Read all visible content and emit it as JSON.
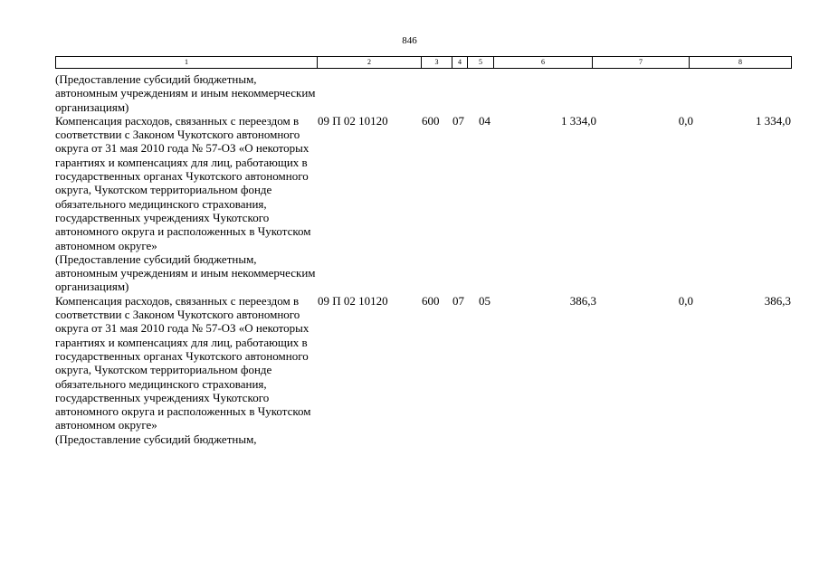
{
  "page": {
    "number": "846"
  },
  "header_columns": [
    "1",
    "2",
    "3",
    "4",
    "5",
    "6",
    "7",
    "8"
  ],
  "leading_note": "(Предоставление субсидий бюджетным, автономным учреждениям и иным некоммерческим организациям)",
  "rows": [
    {
      "description": "Компенсация расходов, связанных с переездом в соответствии с Законом Чукотского автономного округа от 31 мая 2010 года № 57-ОЗ «О некоторых гарантиях и компенсациях для лиц, работающих в государственных органах Чукотского автономного округа, Чукотском территориальном фонде обязательного медицинского страхования, государственных учреждениях Чукотского автономного округа и расположенных в Чукотском автономном округе»",
      "note": "(Предоставление субсидий бюджетным, автономным учреждениям и иным некоммерческим организациям)",
      "code": "09 П 02 10120",
      "vr": "600",
      "rz": "07",
      "pr": "04",
      "col6": "1 334,0",
      "col7": "0,0",
      "col8": "1 334,0"
    },
    {
      "description": "Компенсация расходов, связанных с переездом в соответствии с Законом Чукотского автономного округа от 31 мая 2010 года № 57-ОЗ «О некоторых гарантиях и компенсациях для лиц, работающих в государственных органах Чукотского автономного округа, Чукотском территориальном фонде обязательного медицинского страхования, государственных учреждениях Чукотского автономного округа и расположенных в Чукотском автономном округе»",
      "note": "(Предоставление субсидий бюджетным,",
      "code": "09 П 02 10120",
      "vr": "600",
      "rz": "07",
      "pr": "05",
      "col6": "386,3",
      "col7": "0,0",
      "col8": "386,3"
    }
  ]
}
